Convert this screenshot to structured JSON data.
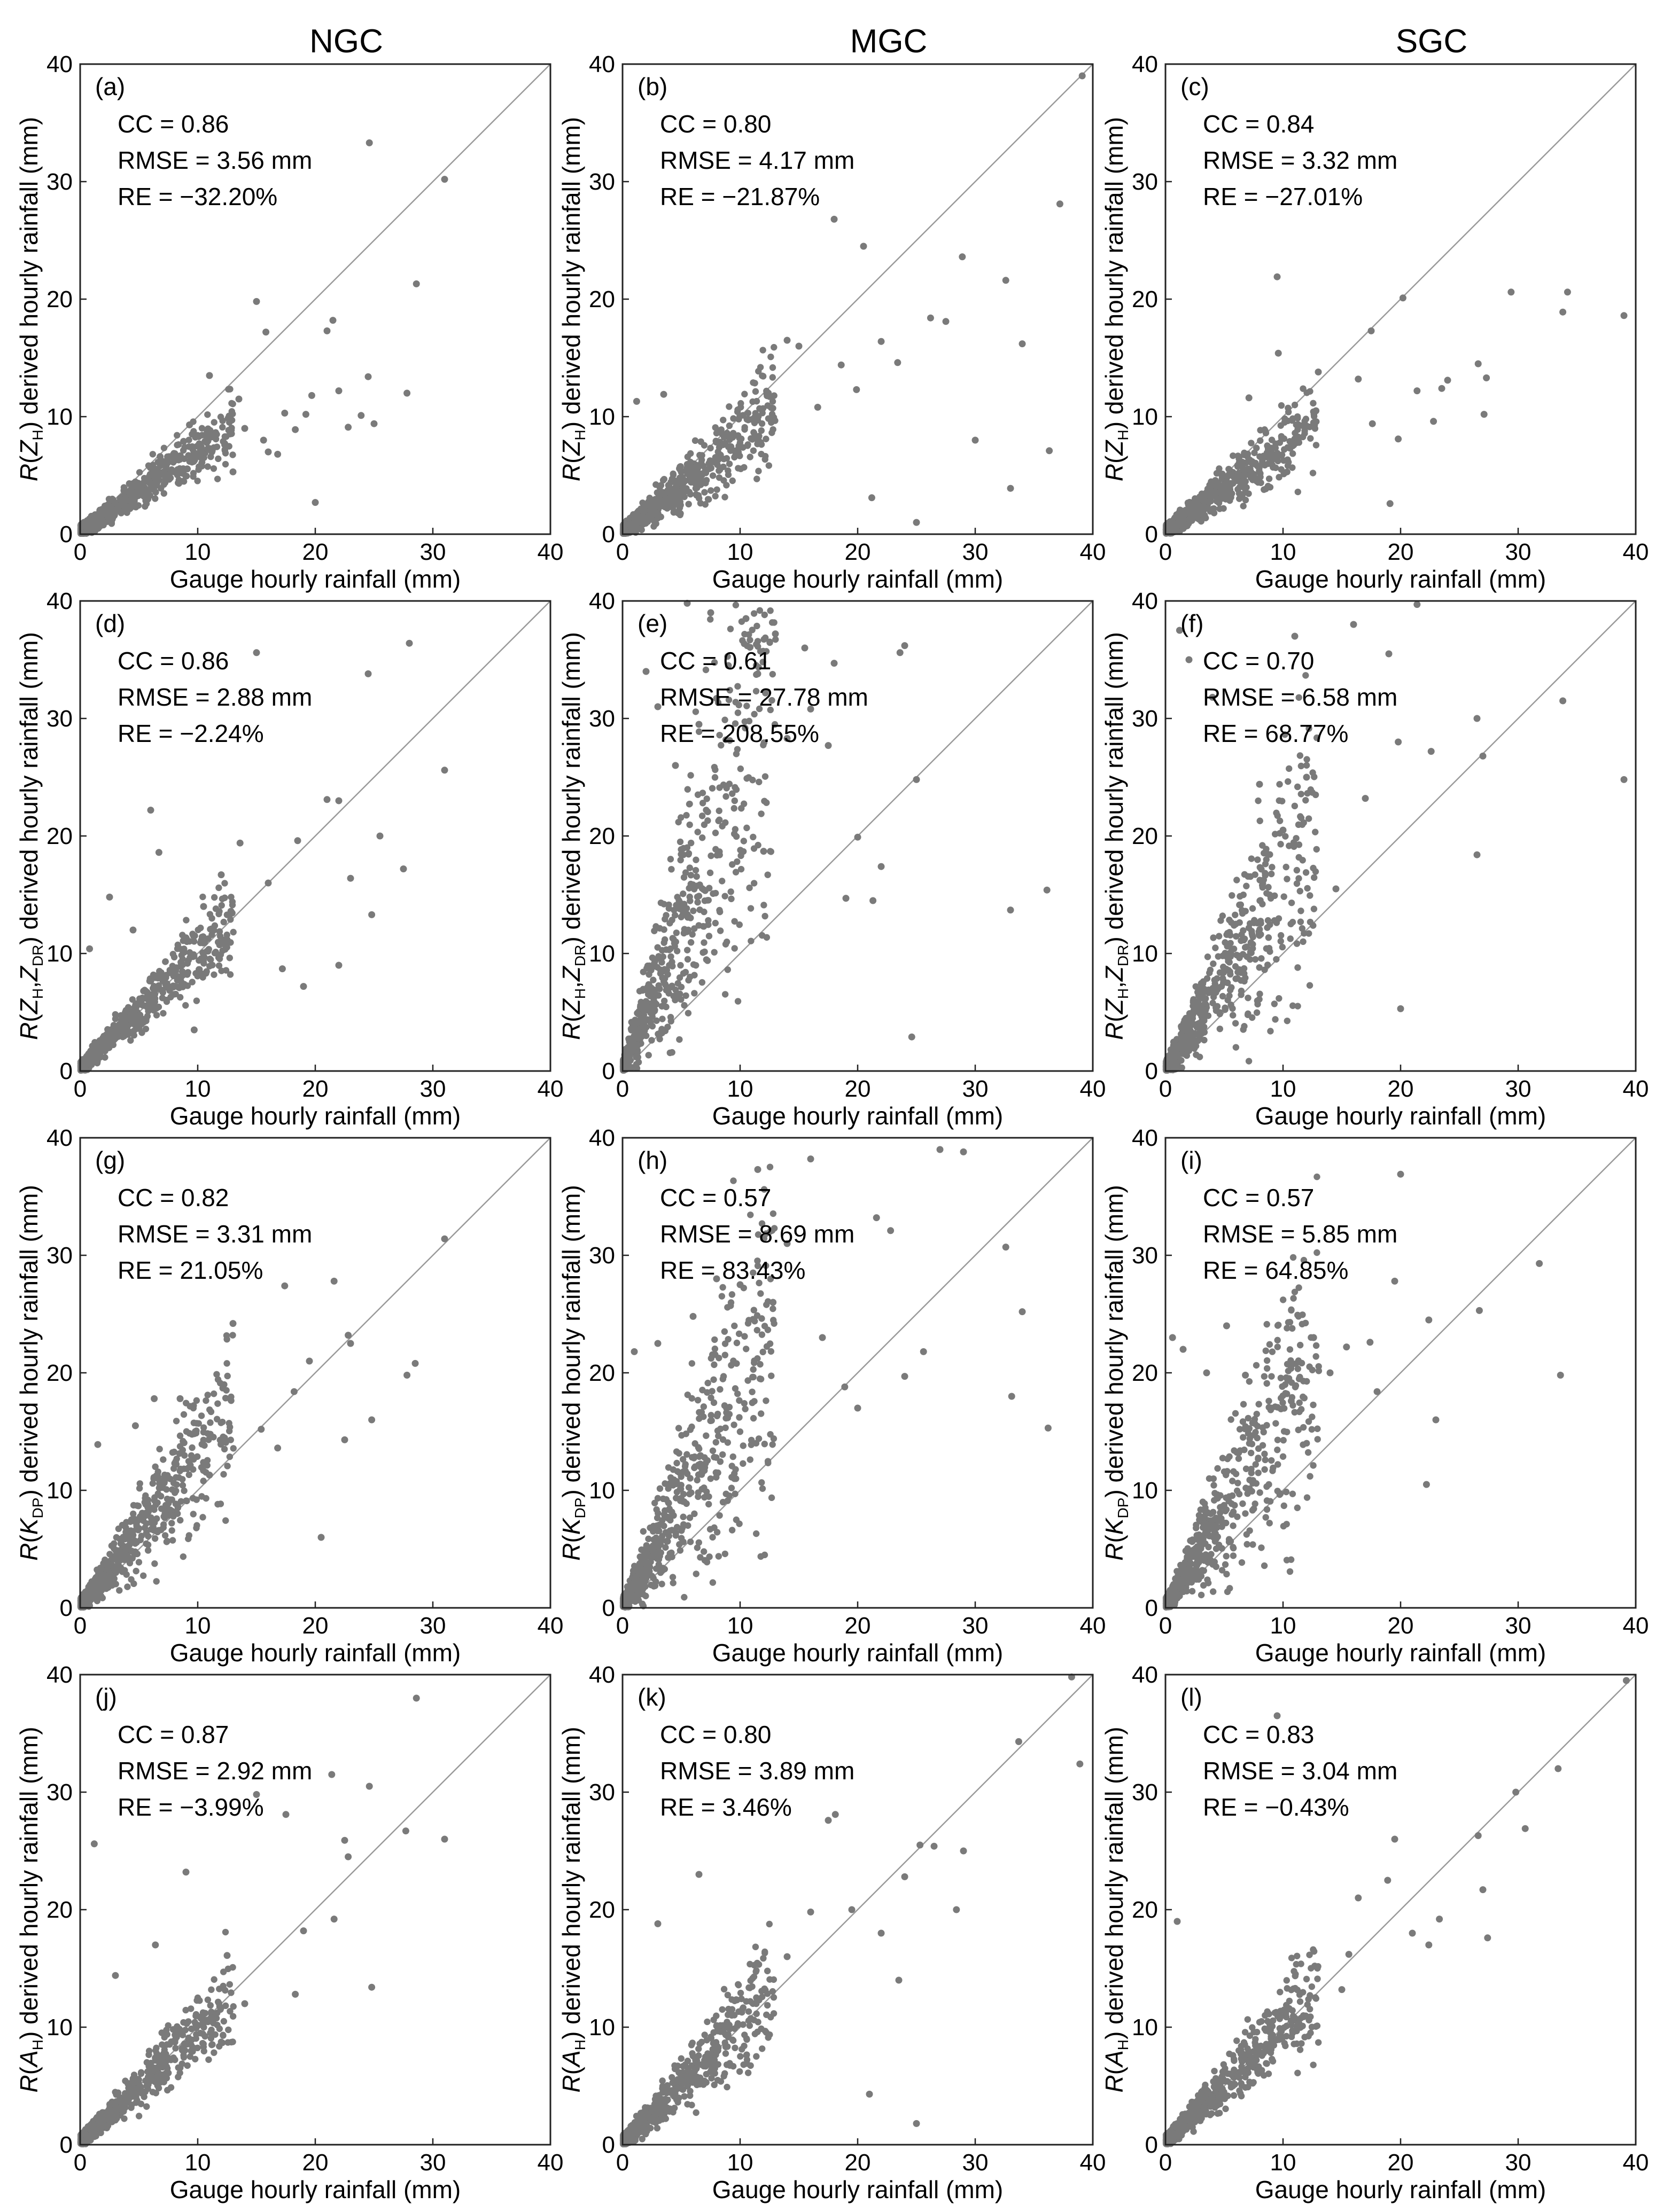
{
  "column_titles": [
    "NGC",
    "MGC",
    "SGC"
  ],
  "chart_data": [
    {
      "type": "scatter",
      "panel": "(a)",
      "column": "NGC",
      "row": 1,
      "title": "",
      "xlabel": "Gauge hourly rainfall (mm)",
      "ylabel": "R(ZH) derived hourly rainfall (mm)",
      "ylabel_parts": {
        "pre": "R(",
        "var": "Z",
        "sub": "H",
        "post": ") derived hourly rainfall (mm)"
      },
      "xlim": [
        0,
        40
      ],
      "ylim": [
        0,
        40
      ],
      "xticks": [
        0,
        10,
        20,
        30,
        40
      ],
      "yticks": [
        0,
        10,
        20,
        30,
        40
      ],
      "reference_line": "1:1",
      "stats": {
        "cc": "CC = 0.86",
        "rmse": "RMSE = 3.56 mm",
        "re": "RE = −32.20%"
      },
      "points": {
        "x": [
          24.6,
          31.0,
          28.6,
          27.8,
          15.0,
          15.8,
          21.5,
          21.0,
          24.5,
          22.0,
          19.2,
          11.0,
          17.4,
          18.3,
          9.3,
          13.5,
          16.8,
          12.3,
          20.0,
          23.9,
          13.0,
          15.6,
          22.8,
          8.8,
          6.8,
          11.2,
          25.0,
          14.0,
          16.0,
          10.0,
          19.7
        ],
        "y": [
          33.3,
          30.2,
          21.3,
          12.0,
          19.8,
          17.2,
          18.2,
          17.3,
          13.4,
          12.2,
          10.2,
          13.5,
          10.3,
          8.9,
          9.3,
          11.5,
          6.8,
          7.7,
          2.7,
          10.1,
          5.3,
          8.0,
          9.1,
          7.9,
          6.6,
          7.0,
          9.4,
          9.0,
          7.0,
          8.4,
          11.8
        ]
      },
      "gen": {
        "n": 700,
        "spread": 0.32,
        "bias": 0.68
      }
    },
    {
      "type": "scatter",
      "panel": "(b)",
      "column": "MGC",
      "row": 1,
      "title": "",
      "xlabel": "Gauge hourly rainfall (mm)",
      "ylabel": "R(ZH) derived hourly rainfall (mm)",
      "ylabel_parts": {
        "pre": "R(",
        "var": "Z",
        "sub": "H",
        "post": ") derived hourly rainfall (mm)"
      },
      "xlim": [
        0,
        40
      ],
      "ylim": [
        0,
        40
      ],
      "xticks": [
        0,
        10,
        20,
        30,
        40
      ],
      "yticks": [
        0,
        10,
        20,
        30,
        40
      ],
      "reference_line": "1:1",
      "stats": {
        "cc": "CC = 0.80",
        "rmse": "RMSE = 4.17 mm",
        "re": "RE = −21.87%"
      },
      "points": {
        "x": [
          39.1,
          37.2,
          18.0,
          20.5,
          28.9,
          32.6,
          34.0,
          36.3,
          26.2,
          27.5,
          22.0,
          33.0,
          25.0,
          15.0,
          14.0,
          1.2,
          3.5,
          18.6,
          19.9,
          30.0,
          23.4,
          21.2,
          12.4,
          16.6
        ],
        "y": [
          39.0,
          28.1,
          26.8,
          24.5,
          23.6,
          21.6,
          16.2,
          7.1,
          18.4,
          18.1,
          16.4,
          3.9,
          1.0,
          16.0,
          16.5,
          11.3,
          11.9,
          14.4,
          12.3,
          8.0,
          14.6,
          3.1,
          12.0,
          10.8
        ]
      },
      "gen": {
        "n": 700,
        "spread": 0.42,
        "bias": 0.78
      }
    },
    {
      "type": "scatter",
      "panel": "(c)",
      "column": "SGC",
      "row": 1,
      "title": "",
      "xlabel": "Gauge hourly rainfall (mm)",
      "ylabel": "R(ZH) derived hourly rainfall (mm)",
      "ylabel_parts": {
        "pre": "R(",
        "var": "Z",
        "sub": "H",
        "post": ") derived hourly rainfall (mm)"
      },
      "xlim": [
        0,
        40
      ],
      "ylim": [
        0,
        40
      ],
      "xticks": [
        0,
        10,
        20,
        30,
        40
      ],
      "yticks": [
        0,
        10,
        20,
        30,
        40
      ],
      "reference_line": "1:1",
      "stats": {
        "cc": "CC = 0.84",
        "rmse": "RMSE = 3.32 mm",
        "re": "RE = −27.01%"
      },
      "points": {
        "x": [
          9.5,
          20.2,
          29.4,
          34.2,
          33.8,
          39.0,
          26.6,
          27.3,
          27.1,
          19.1,
          17.5,
          21.4,
          9.6,
          7.1,
          23.5,
          16.4,
          22.8,
          12.8,
          19.8,
          17.6,
          13.0,
          24.0
        ],
        "y": [
          21.9,
          20.1,
          20.6,
          20.6,
          18.9,
          18.6,
          14.5,
          13.3,
          10.2,
          2.6,
          17.3,
          12.2,
          15.4,
          11.6,
          12.4,
          13.2,
          9.6,
          10.5,
          8.1,
          9.4,
          13.8,
          13.1
        ]
      },
      "gen": {
        "n": 700,
        "spread": 0.36,
        "bias": 0.73
      }
    },
    {
      "type": "scatter",
      "panel": "(d)",
      "column": "NGC",
      "row": 2,
      "title": "",
      "xlabel": "Gauge hourly rainfall (mm)",
      "ylabel": "R(ZH,ZDR) derived hourly rainfall (mm)",
      "ylabel_parts": {
        "pre": "R(",
        "var": "Z",
        "sub": "H",
        "sep": ",",
        "var2": "Z",
        "sub2": "DR",
        "post": ") derived hourly rainfall (mm)"
      },
      "xlim": [
        0,
        40
      ],
      "ylim": [
        0,
        40
      ],
      "xticks": [
        0,
        10,
        20,
        30,
        40
      ],
      "yticks": [
        0,
        10,
        20,
        30,
        40
      ],
      "reference_line": "1:1",
      "stats": {
        "cc": "CC = 0.86",
        "rmse": "RMSE = 2.88 mm",
        "re": "RE = −2.24%"
      },
      "points": {
        "x": [
          15.0,
          28.0,
          24.5,
          31.0,
          27.5,
          6.0,
          6.7,
          2.5,
          0.8,
          21.0,
          22.0,
          18.5,
          19.0,
          17.2,
          24.8,
          22.0,
          9.7,
          25.5,
          12.0,
          13.6,
          4.5,
          23.0,
          16.0,
          10.5
        ],
        "y": [
          35.6,
          36.4,
          33.8,
          25.6,
          17.2,
          22.2,
          18.6,
          14.8,
          10.4,
          23.1,
          23.0,
          19.6,
          7.2,
          8.7,
          13.3,
          9.0,
          3.5,
          20.0,
          16.7,
          19.4,
          12.0,
          16.4,
          16.0,
          14.0
        ]
      },
      "gen": {
        "n": 700,
        "spread": 0.28,
        "bias": 0.98
      }
    },
    {
      "type": "scatter",
      "panel": "(e)",
      "column": "MGC",
      "row": 2,
      "title": "",
      "xlabel": "Gauge hourly rainfall (mm)",
      "ylabel": "R(ZH,ZDR) derived hourly rainfall (mm)",
      "ylabel_parts": {
        "pre": "R(",
        "var": "Z",
        "sub": "H",
        "sep": ",",
        "var2": "Z",
        "sub2": "DR",
        "post": ") derived hourly rainfall (mm)"
      },
      "xlim": [
        0,
        40
      ],
      "ylim": [
        0,
        40
      ],
      "xticks": [
        0,
        10,
        20,
        30,
        40
      ],
      "yticks": [
        0,
        10,
        20,
        30,
        40
      ],
      "reference_line": "1:1",
      "stats": {
        "cc": "CC = 0.61",
        "rmse": "RMSE = 27.78 mm",
        "re": "RE = 208.55%"
      },
      "points": {
        "x": [
          5.5,
          7.5,
          10.5,
          13.0,
          15.5,
          18.0,
          23.6,
          24.0,
          9.0,
          11.5,
          6.5,
          16.0,
          33.0,
          36.1,
          22.0,
          20.0,
          17.5,
          14.0,
          3.0,
          19.0,
          12.0,
          24.6,
          21.3,
          8.0,
          25.0,
          2.0,
          4.5
        ],
        "y": [
          39.8,
          39.0,
          38.5,
          37.2,
          36.0,
          34.7,
          35.6,
          36.2,
          34.5,
          33.8,
          29.5,
          30.8,
          13.7,
          15.4,
          17.4,
          19.9,
          27.7,
          28.3,
          31.0,
          14.7,
          18.7,
          2.9,
          14.5,
          31.7,
          24.8,
          34.0,
          26.0
        ]
      },
      "gen": {
        "n": 700,
        "spread": 0.7,
        "bias": 2.4
      }
    },
    {
      "type": "scatter",
      "panel": "(f)",
      "column": "SGC",
      "row": 2,
      "title": "",
      "xlabel": "Gauge hourly rainfall (mm)",
      "ylabel": "R(ZH,ZDR) derived hourly rainfall (mm)",
      "ylabel_parts": {
        "pre": "R(",
        "var": "Z",
        "sub": "H",
        "sep": ",",
        "var2": "Z",
        "sub2": "DR",
        "post": ") derived hourly rainfall (mm)"
      },
      "xlim": [
        0,
        40
      ],
      "ylim": [
        0,
        40
      ],
      "xticks": [
        0,
        10,
        20,
        30,
        40
      ],
      "yticks": [
        0,
        10,
        20,
        30,
        40
      ],
      "reference_line": "1:1",
      "stats": {
        "cc": "CC = 0.70",
        "rmse": "RMSE = 6.58 mm",
        "re": "RE = 68.77%"
      },
      "points": {
        "x": [
          1.2,
          2.0,
          11.0,
          16.0,
          19.0,
          21.4,
          26.5,
          33.8,
          39.0,
          27.0,
          26.5,
          20.0,
          17.0,
          12.0,
          8.0,
          22.6,
          19.8,
          14.5,
          10.0,
          4.0
        ],
        "y": [
          37.5,
          35.0,
          37.0,
          38.0,
          35.5,
          39.7,
          30.0,
          31.5,
          24.8,
          26.8,
          18.4,
          5.3,
          23.2,
          25.0,
          24.4,
          27.2,
          28.0,
          15.5,
          20.5,
          31.8
        ]
      },
      "gen": {
        "n": 700,
        "spread": 0.55,
        "bias": 1.6
      }
    },
    {
      "type": "scatter",
      "panel": "(g)",
      "column": "NGC",
      "row": 3,
      "title": "",
      "xlabel": "Gauge hourly rainfall (mm)",
      "ylabel": "R(KDP) derived hourly rainfall (mm)",
      "ylabel_parts": {
        "pre": "R(",
        "var": "K",
        "sub": "DP",
        "post": ") derived hourly rainfall (mm)"
      },
      "xlim": [
        0,
        40
      ],
      "ylim": [
        0,
        40
      ],
      "xticks": [
        0,
        10,
        20,
        30,
        40
      ],
      "yticks": [
        0,
        10,
        20,
        30,
        40
      ],
      "reference_line": "1:1",
      "stats": {
        "cc": "CC = 0.82",
        "rmse": "RMSE = 3.31 mm",
        "re": "RE = 21.05%"
      },
      "points": {
        "x": [
          31.0,
          28.5,
          21.6,
          22.8,
          17.4,
          13.0,
          27.8,
          19.5,
          6.3,
          8.5,
          1.5,
          4.7,
          18.2,
          24.8,
          20.5,
          22.5,
          11.0,
          15.4,
          16.8,
          23.0
        ],
        "y": [
          31.4,
          20.8,
          27.8,
          23.2,
          27.4,
          24.2,
          19.8,
          21.0,
          17.8,
          17.8,
          13.9,
          15.5,
          18.4,
          16.0,
          6.0,
          14.3,
          11.3,
          15.2,
          13.6,
          22.5
        ]
      },
      "gen": {
        "n": 700,
        "spread": 0.42,
        "bias": 1.25
      }
    },
    {
      "type": "scatter",
      "panel": "(h)",
      "column": "MGC",
      "row": 3,
      "title": "",
      "xlabel": "Gauge hourly rainfall (mm)",
      "ylabel": "R(KDP) derived hourly rainfall (mm)",
      "ylabel_parts": {
        "pre": "R(",
        "var": "K",
        "sub": "DP",
        "post": ") derived hourly rainfall (mm)"
      },
      "xlim": [
        0,
        40
      ],
      "ylim": [
        0,
        40
      ],
      "xticks": [
        0,
        10,
        20,
        30,
        40
      ],
      "yticks": [
        0,
        10,
        20,
        30,
        40
      ],
      "reference_line": "1:1",
      "stats": {
        "cc": "CC = 0.57",
        "rmse": "RMSE = 8.69 mm",
        "re": "RE = 83.43%"
      },
      "points": {
        "x": [
          27.0,
          29.0,
          16.0,
          11.5,
          32.6,
          34.0,
          33.1,
          36.2,
          21.6,
          22.8,
          24.0,
          18.9,
          14.0,
          8.0,
          6.0,
          3.0,
          1.0,
          12.8,
          17.0,
          20.0,
          25.6,
          10.0
        ],
        "y": [
          39.0,
          38.8,
          38.2,
          37.3,
          30.7,
          25.2,
          18.0,
          15.3,
          33.2,
          32.1,
          19.7,
          18.8,
          31.0,
          28.0,
          24.8,
          22.5,
          21.8,
          26.0,
          23.0,
          17.0,
          21.8,
          27.5
        ]
      },
      "gen": {
        "n": 700,
        "spread": 0.65,
        "bias": 1.8
      }
    },
    {
      "type": "scatter",
      "panel": "(i)",
      "column": "SGC",
      "row": 3,
      "title": "",
      "xlabel": "Gauge hourly rainfall (mm)",
      "ylabel": "R(KDP) derived hourly rainfall (mm)",
      "ylabel_parts": {
        "pre": "R(",
        "var": "K",
        "sub": "DP",
        "post": ") derived hourly rainfall (mm)"
      },
      "xlim": [
        0,
        40
      ],
      "ylim": [
        0,
        40
      ],
      "xticks": [
        0,
        10,
        20,
        30,
        40
      ],
      "yticks": [
        0,
        10,
        20,
        30,
        40
      ],
      "reference_line": "1:1",
      "stats": {
        "cc": "CC = 0.57",
        "rmse": "RMSE = 5.85 mm",
        "re": "RE = 64.85%"
      },
      "points": {
        "x": [
          20.0,
          31.8,
          26.7,
          33.6,
          19.5,
          22.4,
          23.0,
          17.4,
          0.6,
          1.5,
          3.5,
          5.2,
          12.6,
          15.4,
          18.0,
          10.7,
          14.0,
          22.2,
          6.8,
          9.0
        ],
        "y": [
          36.9,
          29.3,
          25.3,
          19.8,
          27.8,
          24.5,
          16.0,
          22.6,
          23.0,
          22.0,
          20.0,
          24.0,
          23.0,
          22.2,
          18.4,
          17.6,
          20.0,
          10.5,
          19.8,
          17.0
        ]
      },
      "gen": {
        "n": 700,
        "spread": 0.6,
        "bias": 1.6
      }
    },
    {
      "type": "scatter",
      "panel": "(j)",
      "column": "NGC",
      "row": 4,
      "title": "",
      "xlabel": "Gauge hourly rainfall (mm)",
      "ylabel": "R(AH) derived hourly rainfall (mm)",
      "ylabel_parts": {
        "pre": "R(",
        "var": "A",
        "sub": "H",
        "post": ") derived hourly rainfall (mm)"
      },
      "xlim": [
        0,
        40
      ],
      "ylim": [
        0,
        40
      ],
      "xticks": [
        0,
        10,
        20,
        30,
        40
      ],
      "yticks": [
        0,
        10,
        20,
        30,
        40
      ],
      "reference_line": "1:1",
      "stats": {
        "cc": "CC = 0.87",
        "rmse": "RMSE = 2.92 mm",
        "re": "RE = −3.99%"
      },
      "points": {
        "x": [
          28.6,
          21.4,
          17.5,
          15.0,
          31.0,
          27.7,
          24.6,
          22.5,
          22.8,
          9.0,
          6.4,
          1.2,
          21.6,
          19.0,
          24.8,
          12.5,
          14.0,
          18.3,
          3.0
        ],
        "y": [
          38.0,
          31.5,
          28.1,
          29.8,
          26.0,
          26.7,
          30.5,
          25.9,
          24.5,
          23.2,
          17.0,
          25.6,
          19.2,
          18.2,
          13.4,
          16.1,
          12.0,
          12.8,
          14.4
        ]
      },
      "gen": {
        "n": 700,
        "spread": 0.3,
        "bias": 0.97
      }
    },
    {
      "type": "scatter",
      "panel": "(k)",
      "column": "MGC",
      "row": 4,
      "title": "",
      "xlabel": "Gauge hourly rainfall (mm)",
      "ylabel": "R(AH) derived hourly rainfall (mm)",
      "ylabel_parts": {
        "pre": "R(",
        "var": "A",
        "sub": "H",
        "post": ") derived hourly rainfall (mm)"
      },
      "xlim": [
        0,
        40
      ],
      "ylim": [
        0,
        40
      ],
      "xticks": [
        0,
        10,
        20,
        30,
        40
      ],
      "yticks": [
        0,
        10,
        20,
        30,
        40
      ],
      "reference_line": "1:1",
      "stats": {
        "cc": "CC = 0.80",
        "rmse": "RMSE = 3.89 mm",
        "re": "RE = 3.46%"
      },
      "points": {
        "x": [
          38.2,
          38.9,
          33.7,
          25.3,
          24.0,
          26.5,
          29.0,
          21.0,
          19.5,
          17.5,
          18.1,
          16.0,
          6.5,
          25.0,
          22.0,
          23.5,
          14.0,
          3.0,
          28.4
        ],
        "y": [
          39.8,
          32.4,
          34.3,
          25.5,
          22.8,
          25.4,
          25.0,
          4.3,
          20.0,
          27.6,
          28.1,
          19.8,
          23.0,
          1.8,
          18.0,
          14.0,
          16.0,
          18.8,
          20.0
        ]
      },
      "gen": {
        "n": 700,
        "spread": 0.38,
        "bias": 1.0
      }
    },
    {
      "type": "scatter",
      "panel": "(l)",
      "column": "SGC",
      "row": 4,
      "title": "",
      "xlabel": "Gauge hourly rainfall (mm)",
      "ylabel": "R(AH) derived hourly rainfall (mm)",
      "ylabel_parts": {
        "pre": "R(",
        "var": "A",
        "sub": "H",
        "post": ") derived hourly rainfall (mm)"
      },
      "xlim": [
        0,
        40
      ],
      "ylim": [
        0,
        40
      ],
      "xticks": [
        0,
        10,
        20,
        30,
        40
      ],
      "yticks": [
        0,
        10,
        20,
        30,
        40
      ],
      "reference_line": "1:1",
      "stats": {
        "cc": "CC = 0.83",
        "rmse": "RMSE = 3.04 mm",
        "re": "RE = −0.43%"
      },
      "points": {
        "x": [
          39.2,
          33.4,
          29.8,
          30.6,
          26.6,
          27.0,
          27.4,
          19.5,
          18.9,
          16.4,
          15.6,
          9.5,
          1.0,
          21.0,
          23.3,
          22.4,
          12.7,
          15.0
        ],
        "y": [
          39.5,
          32.0,
          30.0,
          26.9,
          26.3,
          21.7,
          17.6,
          26.0,
          22.5,
          21.0,
          16.2,
          36.5,
          19.0,
          18.0,
          19.2,
          17.0,
          15.2,
          13.2
        ]
      },
      "gen": {
        "n": 700,
        "spread": 0.32,
        "bias": 0.99
      }
    }
  ]
}
